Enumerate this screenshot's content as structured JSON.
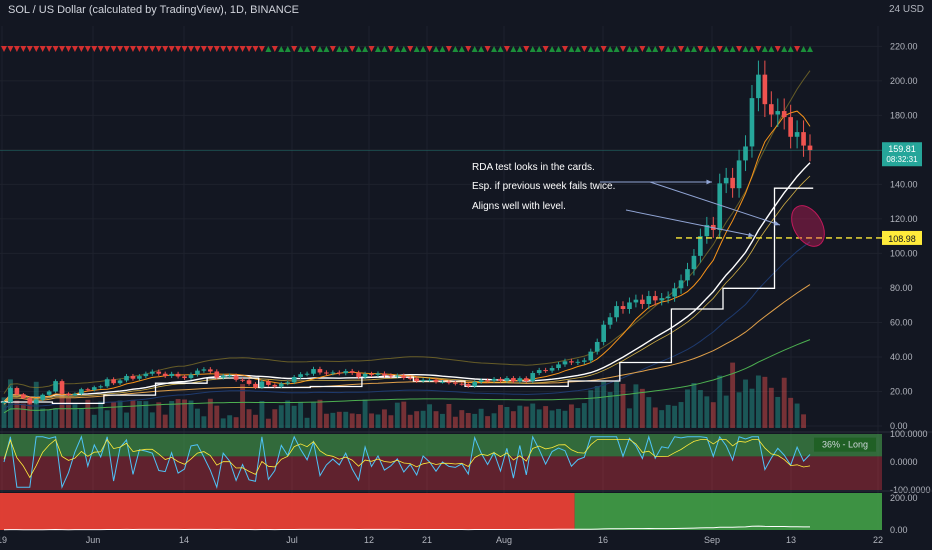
{
  "header": {
    "title": "SOL / US Dollar (calculated by TradingView), 1D, BINANCE",
    "currency": "24 USD"
  },
  "colors": {
    "up": "#26a69a",
    "down": "#ef5350",
    "bg": "#131722",
    "grid": "#1e222d",
    "orange": "#f7931a",
    "white": "#ffffff",
    "yellow": "#ffeb3b",
    "oscGreen": "#4caf50",
    "oscRed": "#f23645",
    "rsi": "#4fc3f7"
  },
  "chart_data": {
    "type": "candlestick",
    "price_axis": {
      "ylim": [
        0,
        226
      ],
      "ticks": [
        "220.00",
        "200.00",
        "180.00",
        "160.00",
        "140.00",
        "120.00",
        "100.00",
        "80.00",
        "60.00",
        "40.00",
        "20.00",
        "0.00"
      ]
    },
    "time_axis": {
      "labels": [
        "19",
        "Jun",
        "14",
        "Jul",
        "12",
        "21",
        "Aug",
        "16",
        "Sep",
        "13",
        "22"
      ]
    },
    "closes": [
      13.9,
      22,
      18.4,
      16.2,
      13.1,
      15.2,
      18.1,
      20,
      26,
      18.8,
      17.9,
      18.7,
      21.3,
      20.9,
      22.5,
      23,
      27.1,
      24.8,
      26.4,
      29,
      27.4,
      28.9,
      30.3,
      31.5,
      30.3,
      29,
      30.2,
      28.7,
      27.8,
      29.8,
      32.1,
      32.8,
      31.6,
      28,
      29.1,
      29.2,
      26.8,
      26.5,
      24.4,
      22.3,
      25.8,
      23.8,
      22.9,
      24.6,
      25.3,
      28.4,
      30,
      30.3,
      33,
      31,
      30.6,
      31,
      30.6,
      31.8,
      30.8,
      28.3,
      30.2,
      29.6,
      30.4,
      29.3,
      28.8,
      29.2,
      27.9,
      27.6,
      26,
      26.7,
      26.7,
      25.6,
      25.6,
      25.1,
      24.5,
      24.3,
      23,
      25.5,
      26.5,
      26.2,
      27.3,
      26.2,
      27.8,
      25.8,
      27.7,
      26.1,
      30.7,
      32.4,
      32.1,
      33.6,
      35.7,
      37.5,
      36.8,
      37.2,
      38,
      43.1,
      48.7,
      58.7,
      63,
      69.5,
      67.8,
      71.6,
      73.2,
      70.7,
      75.3,
      72.8,
      74.1,
      75,
      79.8,
      84.4,
      90.9,
      98.6,
      110,
      116.5,
      113.6,
      140.6,
      143.8,
      137.8,
      153.9,
      162,
      190,
      203.6,
      186.5,
      180.5,
      182.5,
      179,
      167.6,
      170.3,
      162.5,
      159.8
    ],
    "volume_ylim": [
      0,
      80
    ],
    "volumes": [
      20.4,
      32.4,
      18.3,
      16.3,
      17,
      30.8,
      13,
      12.3,
      13.2,
      25.3,
      20.2,
      16.7,
      12.9,
      18.8,
      8.8,
      17.6,
      11.8,
      17.4,
      18.3,
      10.3,
      18.8,
      18,
      17.9,
      10.4,
      17.1,
      8.9,
      18,
      19.3,
      19,
      18.3,
      12.9,
      7.8,
      19.5,
      14.9,
      6.4,
      8.5,
      7.2,
      29.3,
      12.5,
      8.8,
      18,
      6.2,
      12.5,
      15.2,
      18.3,
      14.8,
      17.4,
      6.8,
      17.4,
      18.8,
      9.5,
      10.1,
      10.8,
      10.8,
      9.7,
      9.3,
      19,
      9.7,
      9,
      12.4,
      8.5,
      16.9,
      17.6,
      8.8,
      11.2,
      11.5,
      15.8,
      11.2,
      9.4,
      16,
      7.5,
      11.9,
      10,
      9.4,
      12.8,
      7.9,
      9.8,
      15.4,
      14,
      11.2,
      14.9,
      14.3,
      16.3,
      12.4,
      14.6,
      11.7,
      12.7,
      11.5,
      15.7,
      13.3,
      16.6,
      25.2,
      28,
      30.9,
      24,
      31.4,
      29.4,
      13.1,
      29.1,
      26.1,
      20.6,
      13.7,
      11.9,
      15.4,
      14.8,
      17.3,
      25.7,
      30,
      25.3,
      21.1,
      17.2,
      34.9,
      21.6,
      43.6,
      23.8,
      32.3,
      26.2,
      35,
      34.1,
      26.8,
      20.7,
      33.5,
      20.1,
      16.3,
      9.1
    ],
    "price_label": "159.81",
    "countdown": "08:32:31",
    "level": 108.98,
    "level_label": "108.98",
    "annotations": [
      "RDA test looks in the cards.",
      "Esp. if previous week fails twice.",
      "Aligns well with level."
    ],
    "oscillator": {
      "ylim": [
        -100,
        100
      ],
      "ticks": [
        "100.0000",
        "0.0000",
        "-100.0000"
      ],
      "badge": "36% - Long"
    },
    "bottom_pane": {
      "ylim": [
        0,
        230
      ],
      "ticks": [
        "200.00",
        "0.00"
      ],
      "regime_switch_index": 89
    }
  }
}
